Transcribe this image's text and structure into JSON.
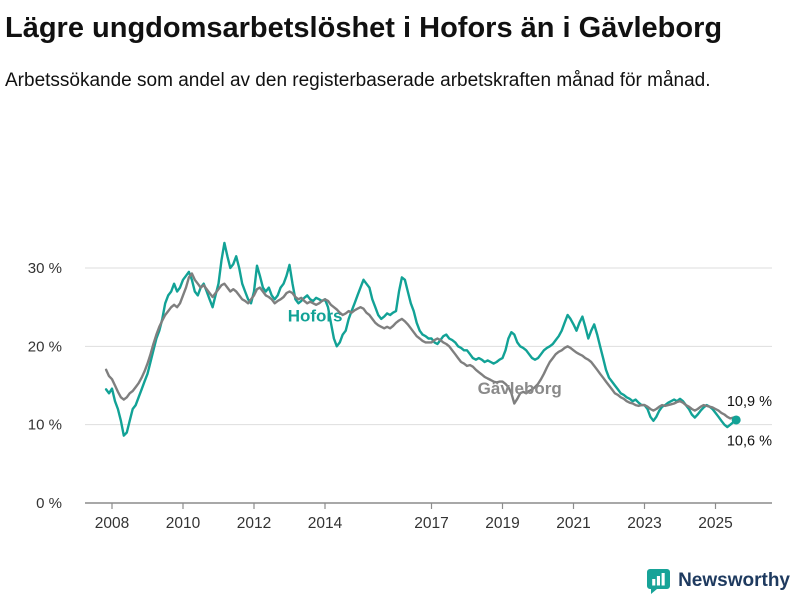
{
  "title": "Lägre ungdomsarbetslöshet i Hofors än i Gävleborg",
  "subtitle": "Arbetssökande som andel av den registerbaserade arbetskraften månad för månad.",
  "branding": {
    "name": "Newsworthy",
    "icon": "newsworthy-pin-barchart",
    "icon_color": "#17a398",
    "text_color": "#1e3a5f"
  },
  "chart_data": {
    "type": "line",
    "title": "Lägre ungdomsarbetslöshet i Hofors än i Gävleborg",
    "subtitle": "Arbetssökande som andel av den registerbaserade arbetskraften månad för månad.",
    "xlabel": "",
    "ylabel": "",
    "grid": "horizontal",
    "legend_position": "inline-labels",
    "xlim": [
      2007.7,
      2026.3
    ],
    "ylim": [
      0,
      35
    ],
    "x_ticks": [
      2008,
      2010,
      2012,
      2014,
      2017,
      2019,
      2021,
      2023,
      2025
    ],
    "x_tick_labels": [
      "2008",
      "2010",
      "2012",
      "2014",
      "2017",
      "2019",
      "2021",
      "2023",
      "2025"
    ],
    "y_ticks": [
      0,
      10,
      20,
      30
    ],
    "y_tick_labels": [
      "0 %",
      "10 %",
      "20 %",
      "30 %"
    ],
    "axis_color": "#8c8c8c",
    "grid_color": "#dedede",
    "tick_text_color": "#333333",
    "series": [
      {
        "name": "Hofors",
        "color": "#12a296",
        "label_color": "#12a296",
        "label_x": 2012.95,
        "label_y": 23.2,
        "end_label": "10,6 %",
        "end_label_y": 8.0,
        "end_value": 10.6,
        "start": 2007.8333,
        "step": 0.0833333,
        "values": [
          14.5,
          14.0,
          14.6,
          13.0,
          12.0,
          10.5,
          8.6,
          9.0,
          10.5,
          12.0,
          12.5,
          13.5,
          14.5,
          15.5,
          16.5,
          18.0,
          19.5,
          21.0,
          22.0,
          23.5,
          25.5,
          26.5,
          27.0,
          28.0,
          27.0,
          27.5,
          28.5,
          29.0,
          29.5,
          28.5,
          27.0,
          26.5,
          27.5,
          28.0,
          27.0,
          26.0,
          25.0,
          26.5,
          28.0,
          31.0,
          33.2,
          31.5,
          30.0,
          30.5,
          31.5,
          30.0,
          28.0,
          27.0,
          26.0,
          25.5,
          27.0,
          30.3,
          29.0,
          27.5,
          27.0,
          27.5,
          26.5,
          26.0,
          26.5,
          27.5,
          28.0,
          29.0,
          30.4,
          28.0,
          26.0,
          25.5,
          25.8,
          26.2,
          26.5,
          26.0,
          25.8,
          26.2,
          26.0,
          25.8,
          26.0,
          25.0,
          23.0,
          21.0,
          20.0,
          20.5,
          21.5,
          22.0,
          23.5,
          24.5,
          25.5,
          26.5,
          27.5,
          28.5,
          28.0,
          27.5,
          26.0,
          25.0,
          24.0,
          23.5,
          23.8,
          24.2,
          24.0,
          24.3,
          24.5,
          27.0,
          28.8,
          28.5,
          27.0,
          25.5,
          24.5,
          23.0,
          22.0,
          21.5,
          21.3,
          21.0,
          21.0,
          20.5,
          20.3,
          20.8,
          21.3,
          21.5,
          21.0,
          20.8,
          20.5,
          20.0,
          19.8,
          19.5,
          19.5,
          19.0,
          18.5,
          18.3,
          18.5,
          18.3,
          18.0,
          18.2,
          18.0,
          17.8,
          18.0,
          18.3,
          18.5,
          19.5,
          21.0,
          21.8,
          21.5,
          20.5,
          20.0,
          19.8,
          19.5,
          19.0,
          18.5,
          18.3,
          18.5,
          19.0,
          19.5,
          19.8,
          20.0,
          20.3,
          20.8,
          21.3,
          22.0,
          23.0,
          24.0,
          23.5,
          22.8,
          22.0,
          23.0,
          23.8,
          22.5,
          21.0,
          22.0,
          22.8,
          21.5,
          20.0,
          18.5,
          17.0,
          16.0,
          15.5,
          15.0,
          14.5,
          14.0,
          13.8,
          13.5,
          13.3,
          13.0,
          13.2,
          12.8,
          12.5,
          12.5,
          12.0,
          11.0,
          10.5,
          11.0,
          11.8,
          12.3,
          12.5,
          12.8,
          13.0,
          13.2,
          13.0,
          13.3,
          13.0,
          12.5,
          12.0,
          11.3,
          10.9,
          11.3,
          11.8,
          12.2,
          12.5,
          12.3,
          12.0,
          11.5,
          11.0,
          10.5,
          10.0,
          9.7,
          10.0,
          10.3,
          10.6
        ]
      },
      {
        "name": "Gävleborg",
        "color": "#7f7f7f",
        "label_color": "#8a8a8a",
        "label_x": 2018.3,
        "label_y": 13.9,
        "end_label": "10,9 %",
        "end_label_y": 13.0,
        "end_value": 10.9,
        "start": 2007.8333,
        "step": 0.0833333,
        "values": [
          17.0,
          16.2,
          15.8,
          15.0,
          14.2,
          13.5,
          13.2,
          13.5,
          14.0,
          14.3,
          14.8,
          15.3,
          16.0,
          16.8,
          17.8,
          19.0,
          20.3,
          21.5,
          22.5,
          23.3,
          24.0,
          24.5,
          25.0,
          25.3,
          25.0,
          25.5,
          26.5,
          27.5,
          28.8,
          29.3,
          28.5,
          28.0,
          27.5,
          27.8,
          27.3,
          26.8,
          26.3,
          26.8,
          27.3,
          27.8,
          28.0,
          27.5,
          27.0,
          27.3,
          27.0,
          26.5,
          26.0,
          25.8,
          25.5,
          26.0,
          26.5,
          27.3,
          27.5,
          27.0,
          26.5,
          26.3,
          26.0,
          25.5,
          25.8,
          26.0,
          26.3,
          26.8,
          27.0,
          26.8,
          26.3,
          26.0,
          26.2,
          25.8,
          25.5,
          25.7,
          25.5,
          25.3,
          25.5,
          25.8,
          26.0,
          25.8,
          25.3,
          25.0,
          24.7,
          24.3,
          24.0,
          24.2,
          24.5,
          24.3,
          24.6,
          24.8,
          25.0,
          24.8,
          24.3,
          24.0,
          23.5,
          23.0,
          22.7,
          22.5,
          22.3,
          22.5,
          22.3,
          22.6,
          23.0,
          23.3,
          23.5,
          23.2,
          22.8,
          22.3,
          21.8,
          21.3,
          21.0,
          20.7,
          20.5,
          20.5,
          20.5,
          20.8,
          21.0,
          20.8,
          20.5,
          20.3,
          20.0,
          19.5,
          19.0,
          18.5,
          18.0,
          17.8,
          17.5,
          17.6,
          17.4,
          17.0,
          16.7,
          16.4,
          16.1,
          15.9,
          15.7,
          15.5,
          15.4,
          15.5,
          15.5,
          15.2,
          14.8,
          14.0,
          12.7,
          13.3,
          14.0,
          14.2,
          14.0,
          14.3,
          14.5,
          14.8,
          15.2,
          15.8,
          16.5,
          17.3,
          18.0,
          18.5,
          19.0,
          19.3,
          19.5,
          19.8,
          20.0,
          19.8,
          19.5,
          19.2,
          19.0,
          18.8,
          18.5,
          18.3,
          18.0,
          17.5,
          17.0,
          16.5,
          16.0,
          15.5,
          15.0,
          14.5,
          14.0,
          13.8,
          13.5,
          13.3,
          13.0,
          12.8,
          12.7,
          12.5,
          12.4,
          12.5,
          12.5,
          12.3,
          12.0,
          11.8,
          12.0,
          12.3,
          12.5,
          12.4,
          12.5,
          12.6,
          12.7,
          12.9,
          13.0,
          12.8,
          12.5,
          12.3,
          12.0,
          11.8,
          12.0,
          12.3,
          12.5,
          12.4,
          12.3,
          12.2,
          12.0,
          11.8,
          11.5,
          11.3,
          11.0,
          10.8,
          10.9,
          10.9
        ]
      }
    ],
    "end_dot": {
      "series": "Hofors",
      "x": 2025.583,
      "y": 10.6,
      "color": "#12a296"
    }
  }
}
